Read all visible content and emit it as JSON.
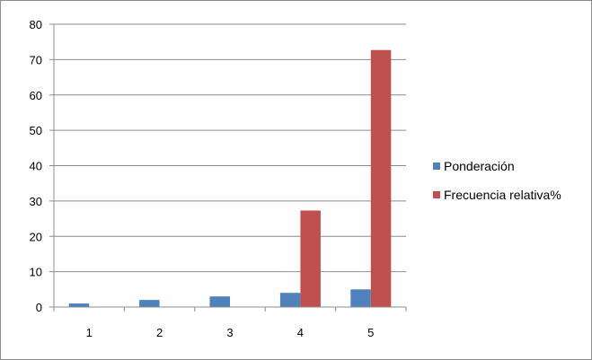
{
  "chart_data": {
    "type": "bar",
    "categories": [
      "1",
      "2",
      "3",
      "4",
      "5"
    ],
    "series": [
      {
        "name": "Ponderación",
        "color": "#4f81bd",
        "values": [
          1,
          2,
          3,
          4,
          5
        ]
      },
      {
        "name": "Frecuencia relativa%",
        "color": "#c0504d",
        "values": [
          0,
          0,
          0,
          27.3,
          72.7
        ]
      }
    ],
    "title": "",
    "xlabel": "",
    "ylabel": "",
    "ylim": [
      0,
      80
    ],
    "yticks": [
      "0",
      "10",
      "20",
      "30",
      "40",
      "50",
      "60",
      "70",
      "80"
    ],
    "grid": true,
    "legend": "right"
  }
}
